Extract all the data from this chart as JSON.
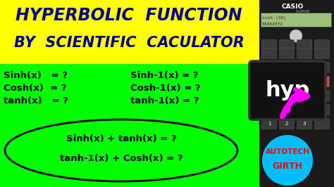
{
  "title_line1": "HYPERBOLIC  FUNCTION",
  "title_line2": "BY  SCIENTIFIC  CACULATOR",
  "title_bg": "#FFFF00",
  "title_color": "#00008B",
  "left_bg": "#00FF00",
  "row1_left": "Sinh(x)   = ?",
  "row2_left": "Cosh(x)  = ?",
  "row3_left": "tanh(x)   = ?",
  "row1_right": "Sinh-1(x) = ?",
  "row2_right": "Cosh-1(x) = ?",
  "row3_right": "tanh-1(x) = ?",
  "box_line1": "Sinh(x) + tanh(x) = ?",
  "box_line2": "tanh-1(x) + Cosh(x) = ?",
  "autotech": "AUTOTECH",
  "girth": "GIRTH",
  "autotech_color": "#FF0000",
  "circle_bg": "#00BFFF",
  "arrow_color": "#FF00FF",
  "hyp_bg": "#111111",
  "hyp_text": "hyp",
  "hyp_text_color": "#FFFFFF",
  "text_color": "#000000",
  "calc_bg": "#1A1A1A",
  "calc_dark": "#2A2A2A",
  "screen_bg": "#9EC07A",
  "figsize": [
    4.74,
    2.66
  ],
  "dpi": 100,
  "title_fontsize": 17,
  "title2_fontsize": 15,
  "formula_fontsize": 9.5
}
